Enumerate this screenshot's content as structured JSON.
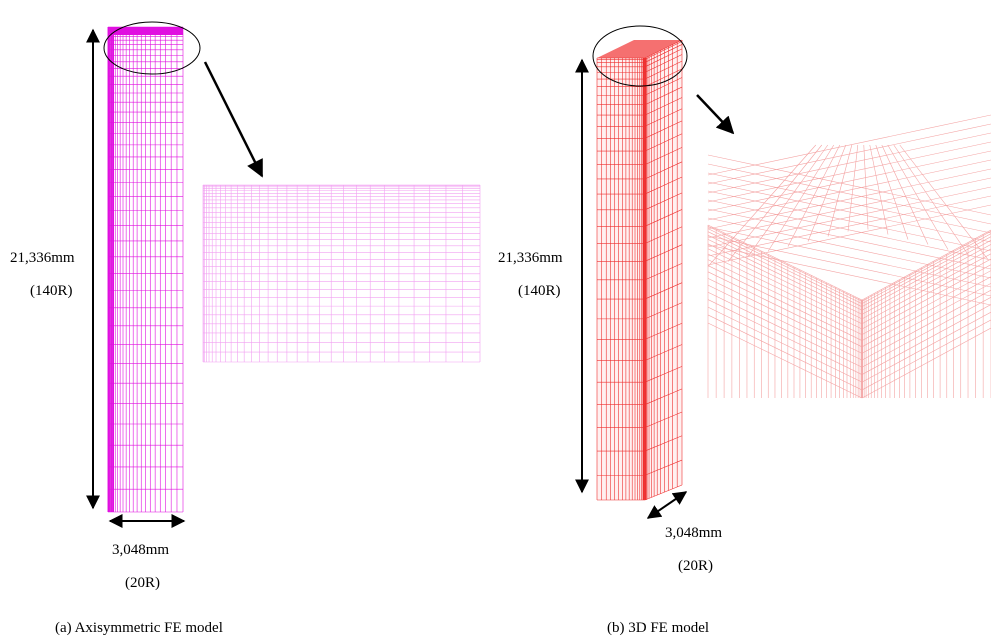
{
  "panels": [
    {
      "height_dimension": "21,336mm",
      "height_ratio": "(140R)",
      "width_dimension": "3,048mm",
      "width_ratio": "(20R)",
      "caption": "(a) Axisymmetric FE model"
    },
    {
      "height_dimension": "21,336mm",
      "height_ratio": "(140R)",
      "width_dimension": "3,048mm",
      "width_ratio": "(20R)",
      "caption": "(b) 3D FE model"
    }
  ]
}
